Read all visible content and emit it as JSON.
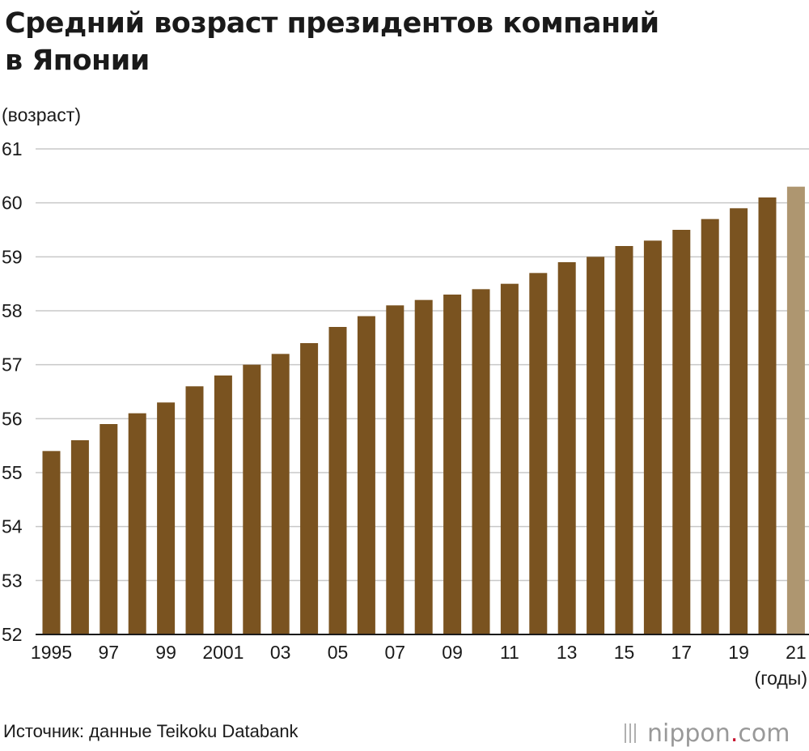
{
  "title_lines": [
    "Средний возраст президентов компаний",
    "в Японии"
  ],
  "source": "Источник: данные Teikoku Databank",
  "logo": {
    "name": "nippon",
    "dot": ".",
    "tld": "com"
  },
  "colors": {
    "bar": "#7a5320",
    "bar_highlight": "#ae9670",
    "grid": "#c8c8c8",
    "axis": "#1a1a1a"
  },
  "chart_data": {
    "type": "bar",
    "ylabel": "(возраст)",
    "xlabel": "(годы)",
    "ylim": [
      52,
      61
    ],
    "yticks": [
      52,
      53,
      54,
      55,
      56,
      57,
      58,
      59,
      60,
      61
    ],
    "grid": true,
    "categories": [
      "1995",
      "1996",
      "1997",
      "1998",
      "1999",
      "2000",
      "2001",
      "2002",
      "2003",
      "2004",
      "2005",
      "2006",
      "2007",
      "2008",
      "2009",
      "2010",
      "2011",
      "2012",
      "2013",
      "2014",
      "2015",
      "2016",
      "2017",
      "2018",
      "2019",
      "2020",
      "2021"
    ],
    "tick_labels": [
      "1995",
      "97",
      "99",
      "2001",
      "03",
      "05",
      "07",
      "09",
      "11",
      "13",
      "15",
      "17",
      "19",
      "21"
    ],
    "values": [
      55.4,
      55.6,
      55.9,
      56.1,
      56.3,
      56.6,
      56.8,
      57.0,
      57.2,
      57.4,
      57.7,
      57.9,
      58.1,
      58.2,
      58.3,
      58.4,
      58.5,
      58.7,
      58.9,
      59.0,
      59.2,
      59.3,
      59.5,
      59.7,
      59.9,
      60.1,
      60.3
    ],
    "highlight_category": "2021"
  }
}
